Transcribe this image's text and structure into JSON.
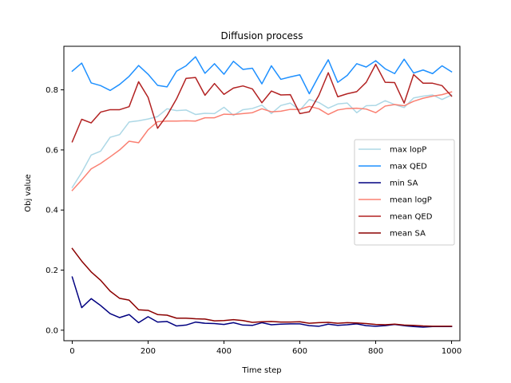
{
  "chart_data": {
    "type": "line",
    "title": "Diffusion process",
    "xlabel": "Time step",
    "ylabel": "Obj value",
    "xlim": [
      -22,
      1022
    ],
    "ylim": [
      -0.035,
      0.945
    ],
    "xticks": [
      0,
      200,
      400,
      600,
      800,
      1000
    ],
    "yticks": [
      0.0,
      0.2,
      0.4,
      0.6,
      0.8
    ],
    "ytick_labels": [
      "0.0",
      "0.2",
      "0.4",
      "0.6",
      "0.8"
    ],
    "grid": false,
    "legend_position": "center-right",
    "x": [
      0,
      25,
      50,
      75,
      100,
      125,
      150,
      175,
      200,
      225,
      250,
      275,
      300,
      325,
      350,
      375,
      400,
      425,
      450,
      475,
      500,
      525,
      550,
      575,
      600,
      625,
      650,
      675,
      700,
      725,
      750,
      775,
      800,
      825,
      850,
      875,
      900,
      925,
      950,
      975,
      1000
    ],
    "series": [
      {
        "name": "max lopP",
        "color": "#add8e6",
        "values": [
          0.475,
          0.525,
          0.583,
          0.596,
          0.642,
          0.651,
          0.693,
          0.697,
          0.703,
          0.711,
          0.737,
          0.731,
          0.733,
          0.718,
          0.722,
          0.721,
          0.742,
          0.715,
          0.734,
          0.738,
          0.749,
          0.721,
          0.748,
          0.756,
          0.732,
          0.768,
          0.758,
          0.739,
          0.753,
          0.756,
          0.724,
          0.747,
          0.748,
          0.764,
          0.751,
          0.741,
          0.773,
          0.779,
          0.783,
          0.768,
          0.783
        ]
      },
      {
        "name": "max QED",
        "color": "#1e90ff",
        "values": [
          0.862,
          0.889,
          0.823,
          0.814,
          0.798,
          0.818,
          0.845,
          0.881,
          0.852,
          0.815,
          0.81,
          0.862,
          0.88,
          0.91,
          0.855,
          0.887,
          0.852,
          0.895,
          0.868,
          0.872,
          0.82,
          0.88,
          0.835,
          0.843,
          0.85,
          0.787,
          0.846,
          0.9,
          0.825,
          0.848,
          0.887,
          0.876,
          0.897,
          0.87,
          0.854,
          0.902,
          0.856,
          0.866,
          0.854,
          0.88,
          0.86
        ]
      },
      {
        "name": "min SA",
        "color": "#000080",
        "values": [
          0.177,
          0.075,
          0.105,
          0.082,
          0.055,
          0.042,
          0.052,
          0.025,
          0.045,
          0.027,
          0.029,
          0.014,
          0.017,
          0.027,
          0.023,
          0.022,
          0.019,
          0.025,
          0.017,
          0.016,
          0.025,
          0.018,
          0.02,
          0.021,
          0.021,
          0.015,
          0.013,
          0.02,
          0.016,
          0.018,
          0.021,
          0.015,
          0.013,
          0.015,
          0.019,
          0.015,
          0.012,
          0.01,
          0.012,
          0.012,
          0.012
        ]
      },
      {
        "name": "mean logP",
        "color": "#fa8072",
        "values": [
          0.465,
          0.5,
          0.537,
          0.555,
          0.577,
          0.6,
          0.629,
          0.624,
          0.667,
          0.694,
          0.696,
          0.696,
          0.697,
          0.696,
          0.707,
          0.707,
          0.719,
          0.718,
          0.721,
          0.724,
          0.737,
          0.727,
          0.729,
          0.735,
          0.735,
          0.745,
          0.737,
          0.718,
          0.733,
          0.738,
          0.739,
          0.736,
          0.724,
          0.746,
          0.751,
          0.747,
          0.762,
          0.772,
          0.779,
          0.784,
          0.793
        ]
      },
      {
        "name": "mean QED",
        "color": "#b22222",
        "values": [
          0.627,
          0.702,
          0.69,
          0.726,
          0.734,
          0.734,
          0.744,
          0.827,
          0.775,
          0.672,
          0.715,
          0.77,
          0.838,
          0.841,
          0.782,
          0.821,
          0.785,
          0.806,
          0.813,
          0.803,
          0.757,
          0.796,
          0.783,
          0.784,
          0.721,
          0.727,
          0.781,
          0.857,
          0.777,
          0.787,
          0.794,
          0.825,
          0.885,
          0.825,
          0.824,
          0.756,
          0.851,
          0.822,
          0.822,
          0.814,
          0.779
        ]
      },
      {
        "name": "mean SA",
        "color": "#8b0000",
        "values": [
          0.272,
          0.23,
          0.194,
          0.166,
          0.13,
          0.106,
          0.1,
          0.068,
          0.066,
          0.052,
          0.05,
          0.04,
          0.04,
          0.038,
          0.037,
          0.031,
          0.032,
          0.035,
          0.032,
          0.026,
          0.028,
          0.029,
          0.027,
          0.027,
          0.028,
          0.023,
          0.025,
          0.026,
          0.023,
          0.025,
          0.024,
          0.022,
          0.019,
          0.018,
          0.02,
          0.017,
          0.016,
          0.014,
          0.013,
          0.013,
          0.013
        ]
      }
    ]
  }
}
